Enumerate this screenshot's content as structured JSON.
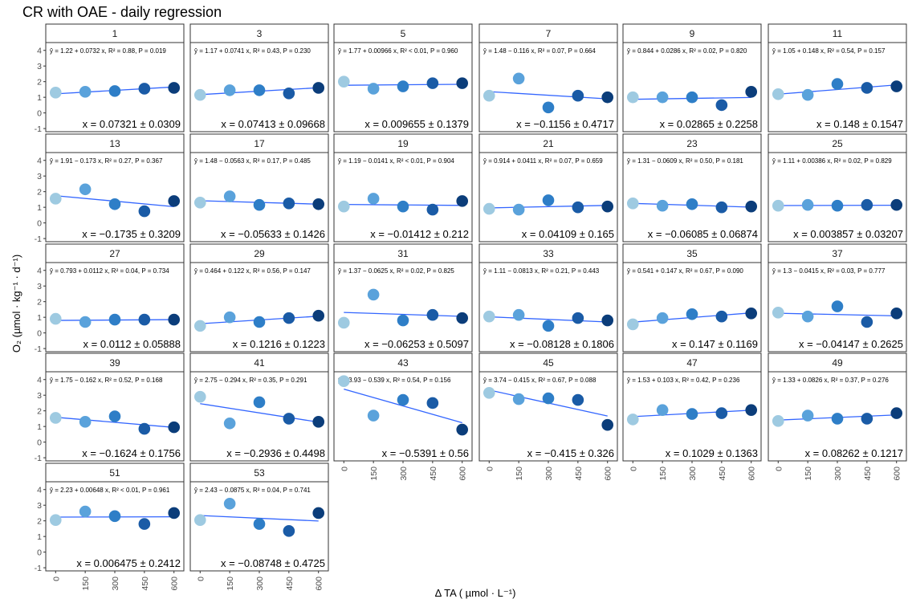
{
  "title": "CR with OAE - daily regression",
  "chart_data": {
    "type": "scatter",
    "facet_by": "day",
    "x_values": [
      0,
      150,
      300,
      450,
      600
    ],
    "x_ticks": [
      "0",
      "150",
      "300",
      "450",
      "600"
    ],
    "y_ticks": [
      "-1",
      "0",
      "1",
      "2",
      "3",
      "4"
    ],
    "ylim": [
      -1.2,
      4.5
    ],
    "xlabel": "Δ TA ( µmol · L⁻¹)",
    "ylabel": "O₂ (µmol · kg⁻¹ · d⁻¹)",
    "point_colors": [
      "#9ecae1",
      "#5aa2db",
      "#2e7ec7",
      "#1a5ba6",
      "#0b3d7a"
    ],
    "line_color": "#3366ff",
    "grid": false,
    "legend": "none",
    "panels": [
      {
        "label": "1",
        "eq": "ŷ = 1.22 + 0.0732 x, R² = 0.88, P = 0.019",
        "slope": "x = 0.07321 ± 0.0309",
        "y": [
          1.3,
          1.35,
          1.4,
          1.55,
          1.6
        ],
        "fit": [
          1.22,
          1.66
        ]
      },
      {
        "label": "3",
        "eq": "ŷ = 1.17 + 0.0741 x, R² = 0.43, P = 0.230",
        "slope": "x = 0.07413 ± 0.09668",
        "y": [
          1.15,
          1.45,
          1.45,
          1.25,
          1.6
        ],
        "fit": [
          1.17,
          1.61
        ]
      },
      {
        "label": "5",
        "eq": "ŷ = 1.77 + 0.00966 x, R² < 0.01, P = 0.960",
        "slope": "x = 0.009655 ± 0.1379",
        "y": [
          2.0,
          1.55,
          1.7,
          1.9,
          1.9
        ],
        "fit": [
          1.77,
          1.83
        ]
      },
      {
        "label": "7",
        "eq": "ŷ = 1.48 − 0.116 x, R² = 0.07, P = 0.664",
        "slope": "x = −0.1156 ± 0.4717",
        "y": [
          1.1,
          2.2,
          0.35,
          1.1,
          1.0
        ],
        "fit": [
          1.36,
          0.9
        ]
      },
      {
        "label": "9",
        "eq": "ŷ = 0.844 + 0.0286 x, R² = 0.02, P = 0.820",
        "slope": "x = 0.02865 ± 0.2258",
        "y": [
          1.0,
          1.0,
          1.0,
          0.5,
          1.35
        ],
        "fit": [
          0.87,
          0.99
        ]
      },
      {
        "label": "11",
        "eq": "ŷ = 1.05 + 0.148 x, R² = 0.54, P = 0.157",
        "slope": "x = 0.148 ± 0.1547",
        "y": [
          1.2,
          1.15,
          1.85,
          1.6,
          1.7
        ],
        "fit": [
          1.2,
          1.79
        ]
      },
      {
        "label": "13",
        "eq": "ŷ = 1.91 − 0.173 x, R² = 0.27, P = 0.367",
        "slope": "x = −0.1735 ± 0.3209",
        "y": [
          1.55,
          2.15,
          1.2,
          0.75,
          1.4
        ],
        "fit": [
          1.74,
          1.04
        ]
      },
      {
        "label": "17",
        "eq": "ŷ = 1.48 − 0.0563 x, R² = 0.17, P = 0.485",
        "slope": "x = −0.05633 ± 0.1426",
        "y": [
          1.3,
          1.7,
          1.15,
          1.25,
          1.2
        ],
        "fit": [
          1.42,
          1.2
        ]
      },
      {
        "label": "19",
        "eq": "ŷ = 1.19 − 0.0141 x, R² < 0.01, P = 0.904",
        "slope": "x = −0.01412 ± 0.212",
        "y": [
          1.05,
          1.55,
          1.05,
          0.85,
          1.4
        ],
        "fit": [
          1.18,
          1.12
        ]
      },
      {
        "label": "21",
        "eq": "ŷ = 0.914 + 0.0411 x, R² = 0.07, P = 0.659",
        "slope": "x = 0.04109 ± 0.165",
        "y": [
          0.9,
          0.85,
          1.45,
          1.0,
          1.05
        ],
        "fit": [
          0.96,
          1.12
        ]
      },
      {
        "label": "23",
        "eq": "ŷ = 1.31 − 0.0609 x, R² = 0.50, P = 0.181",
        "slope": "x = −0.06085 ± 0.06874",
        "y": [
          1.25,
          1.1,
          1.2,
          1.0,
          1.05
        ],
        "fit": [
          1.25,
          1.01
        ]
      },
      {
        "label": "25",
        "eq": "ŷ = 1.11 + 0.00386 x, R² = 0.02, P = 0.829",
        "slope": "x = 0.003857 ± 0.03207",
        "y": [
          1.1,
          1.15,
          1.1,
          1.15,
          1.15
        ],
        "fit": [
          1.11,
          1.13
        ]
      },
      {
        "label": "27",
        "eq": "ŷ = 0.793 + 0.0112 x, R² = 0.04, P = 0.734",
        "slope": "x = 0.0112 ± 0.05888",
        "y": [
          0.9,
          0.7,
          0.85,
          0.85,
          0.85
        ],
        "fit": [
          0.8,
          0.85
        ]
      },
      {
        "label": "29",
        "eq": "ŷ = 0.464 + 0.122 x, R² = 0.56, P = 0.147",
        "slope": "x = 0.1216 ± 0.1223",
        "y": [
          0.45,
          1.0,
          0.7,
          0.95,
          1.1
        ],
        "fit": [
          0.59,
          1.07
        ]
      },
      {
        "label": "31",
        "eq": "ŷ = 1.37 − 0.0625 x, R² = 0.02, P = 0.825",
        "slope": "x = −0.06253 ± 0.5097",
        "y": [
          0.65,
          2.45,
          0.8,
          1.15,
          0.95
        ],
        "fit": [
          1.31,
          1.06
        ]
      },
      {
        "label": "33",
        "eq": "ŷ = 1.11 − 0.0813 x, R² = 0.21, P = 0.443",
        "slope": "x = −0.08128 ± 0.1806",
        "y": [
          1.05,
          1.15,
          0.45,
          0.95,
          0.8
        ],
        "fit": [
          1.03,
          0.7
        ]
      },
      {
        "label": "35",
        "eq": "ŷ = 0.541 + 0.147 x, R² = 0.67, P = 0.090",
        "slope": "x = 0.147 ± 0.1169",
        "y": [
          0.55,
          0.95,
          1.2,
          1.05,
          1.25
        ],
        "fit": [
          0.69,
          1.28
        ]
      },
      {
        "label": "37",
        "eq": "ŷ = 1.3 − 0.0415 x, R² = 0.03, P = 0.777",
        "slope": "x = −0.04147 ± 0.2625",
        "y": [
          1.3,
          1.05,
          1.7,
          0.7,
          1.25
        ],
        "fit": [
          1.26,
          1.09
        ]
      },
      {
        "label": "39",
        "eq": "ŷ = 1.75 − 0.162 x, R² = 0.52, P = 0.168",
        "slope": "x = −0.1624 ± 0.1756",
        "y": [
          1.55,
          1.3,
          1.65,
          0.85,
          0.95
        ],
        "fit": [
          1.59,
          0.94
        ]
      },
      {
        "label": "41",
        "eq": "ŷ = 2.75 − 0.294 x, R² = 0.35, P = 0.291",
        "slope": "x = −0.2936 ± 0.4498",
        "y": [
          2.9,
          1.2,
          2.55,
          1.5,
          1.3
        ],
        "fit": [
          2.46,
          1.28
        ]
      },
      {
        "label": "43",
        "eq": "ŷ = 3.93 − 0.539 x, R² = 0.54, P = 0.156",
        "slope": "x = −0.5391 ± 0.56",
        "y": [
          3.9,
          1.7,
          2.7,
          2.5,
          0.8
        ],
        "fit": [
          3.39,
          1.24
        ]
      },
      {
        "label": "45",
        "eq": "ŷ = 3.74 − 0.415 x, R² = 0.67, P = 0.088",
        "slope": "x = −0.415 ± 0.326",
        "y": [
          3.15,
          2.75,
          2.8,
          2.7,
          1.1
        ],
        "fit": [
          3.33,
          1.67
        ]
      },
      {
        "label": "47",
        "eq": "ŷ = 1.53 + 0.103 x, R² = 0.42, P = 0.236",
        "slope": "x = 0.1029 ± 0.1363",
        "y": [
          1.45,
          2.05,
          1.8,
          1.85,
          2.05
        ],
        "fit": [
          1.63,
          2.04
        ]
      },
      {
        "label": "49",
        "eq": "ŷ = 1.33 + 0.0826 x, R² = 0.37, P = 0.276",
        "slope": "x = 0.08262 ± 0.1217",
        "y": [
          1.35,
          1.7,
          1.5,
          1.5,
          1.85
        ],
        "fit": [
          1.41,
          1.74
        ]
      },
      {
        "label": "51",
        "eq": "ŷ = 2.23 + 0.00648 x, R² < 0.01, P = 0.961",
        "slope": "x = 0.006475 ± 0.2412",
        "y": [
          2.05,
          2.6,
          2.3,
          1.8,
          2.5
        ],
        "fit": [
          2.24,
          2.26
        ]
      },
      {
        "label": "53",
        "eq": "ŷ = 2.43 − 0.0875 x, R² = 0.04, P = 0.741",
        "slope": "x = −0.08748 ± 0.4725",
        "y": [
          2.05,
          3.1,
          1.8,
          1.35,
          2.5
        ],
        "fit": [
          2.34,
          1.99
        ]
      }
    ]
  }
}
